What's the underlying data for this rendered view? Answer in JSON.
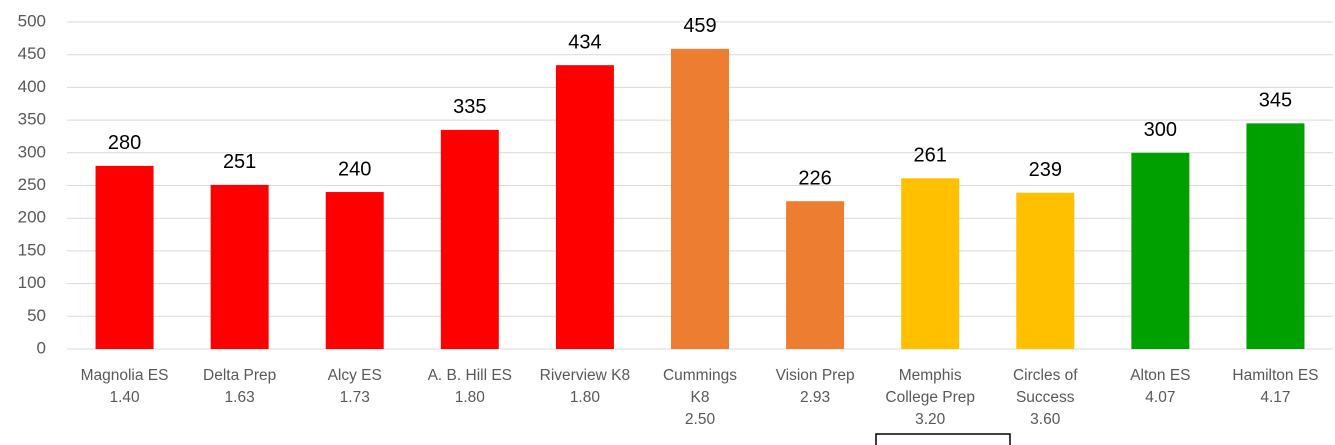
{
  "chart_data": {
    "type": "bar",
    "categories": [
      [
        "Magnolia ES",
        "1.40"
      ],
      [
        "Delta Prep",
        "1.63"
      ],
      [
        "Alcy ES",
        "1.73"
      ],
      [
        "A. B. Hill ES",
        "1.80"
      ],
      [
        "Riverview K8",
        "1.80"
      ],
      [
        "Cummings",
        "K8",
        "2.50"
      ],
      [
        "Vision Prep",
        "2.93"
      ],
      [
        "Memphis",
        "College Prep",
        "3.20"
      ],
      [
        "Circles of",
        "Success",
        "3.60"
      ],
      [
        "Alton ES",
        "4.07"
      ],
      [
        "Hamilton ES",
        "4.17"
      ]
    ],
    "values": [
      280,
      251,
      240,
      335,
      434,
      459,
      226,
      261,
      239,
      300,
      345
    ],
    "colors": [
      "#ff0000",
      "#ff0000",
      "#ff0000",
      "#ff0000",
      "#ff0000",
      "#ed7d31",
      "#ed7d31",
      "#ffc000",
      "#ffc000",
      "#00a000",
      "#00a000"
    ],
    "ylim": [
      0,
      500
    ],
    "yticks": [
      0,
      50,
      100,
      150,
      200,
      250,
      300,
      350,
      400,
      450,
      500
    ],
    "grid": true
  }
}
